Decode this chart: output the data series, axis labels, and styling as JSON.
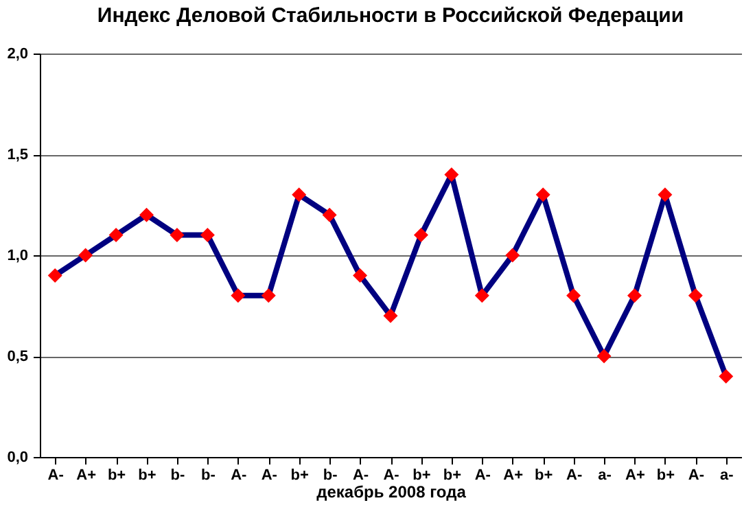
{
  "chart_data": {
    "type": "line",
    "title": "Индекс Деловой Стабильности в Российской Федерации",
    "xlabel": "декабрь 2008 года",
    "categories": [
      "A-",
      "A+",
      "b+",
      "b+",
      "b-",
      "b-",
      "A-",
      "A-",
      "b+",
      "b-",
      "A-",
      "A-",
      "b+",
      "b+",
      "A-",
      "A+",
      "b+",
      "A-",
      "a-",
      "A+",
      "b+",
      "A-",
      "a-"
    ],
    "series": [
      {
        "color": "#000080",
        "values": [
          0.9,
          1.0,
          1.1,
          1.2,
          1.1,
          1.1,
          0.8,
          0.8,
          1.3,
          1.2,
          0.9,
          0.7,
          1.1,
          1.4,
          0.8,
          1.0,
          1.3,
          0.8,
          0.5,
          0.8,
          1.3,
          0.8,
          0.4
        ]
      }
    ],
    "ylim": [
      0,
      2
    ],
    "yticks": [
      {
        "value": 0,
        "label": "0,0"
      },
      {
        "value": 0.5,
        "label": "0,5"
      },
      {
        "value": 1,
        "label": "1,0"
      },
      {
        "value": 1.5,
        "label": "1,5"
      },
      {
        "value": 2,
        "label": "2,0"
      }
    ],
    "grid": "y",
    "marker": "diamond",
    "line_style": "solid"
  }
}
